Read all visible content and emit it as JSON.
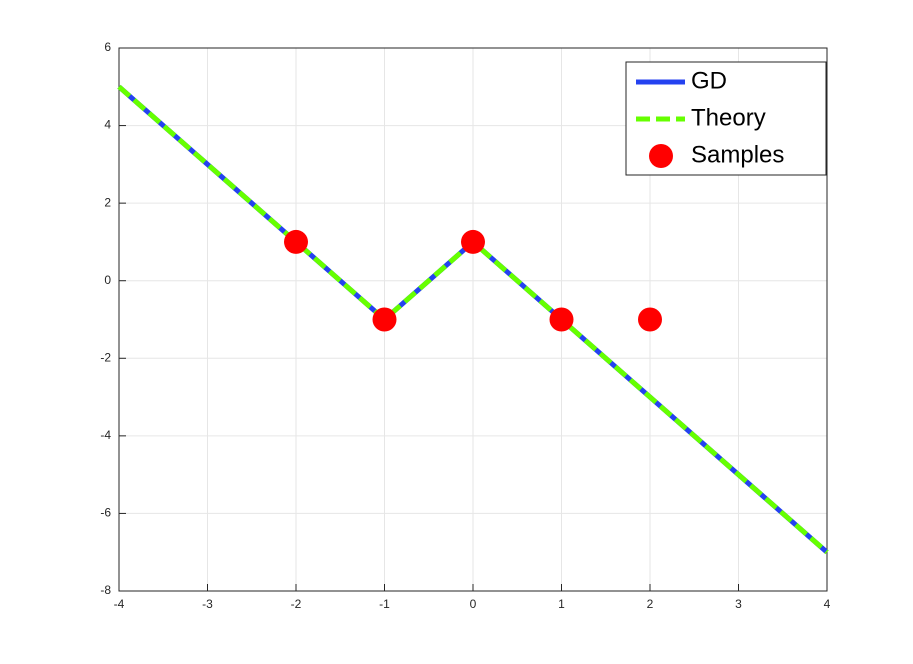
{
  "chart_data": {
    "type": "line",
    "xlim": [
      -4,
      4
    ],
    "xticks": [
      -4,
      -3,
      -2,
      -1,
      0,
      1,
      2,
      3,
      4
    ],
    "ylim": [
      -8,
      6
    ],
    "yticks": [
      -8,
      -6,
      -4,
      -2,
      0,
      2,
      4,
      6
    ],
    "grid": true,
    "legend": "upper-right",
    "series": [
      {
        "name": "GD",
        "color": "#2442f0",
        "style": "solid",
        "x": [
          -4,
          -1,
          0,
          4
        ],
        "values": [
          5,
          -1,
          1,
          -7
        ]
      },
      {
        "name": "Theory",
        "color": "#66ff00",
        "style": "dashed",
        "x": [
          -4,
          -1,
          0,
          4
        ],
        "values": [
          5,
          -1,
          1,
          -7
        ]
      },
      {
        "name": "Samples",
        "color": "#ff0000",
        "style": "markers",
        "x": [
          -2,
          -1,
          0,
          1,
          2
        ],
        "values": [
          1,
          -1,
          1,
          -1,
          -1
        ]
      }
    ]
  }
}
